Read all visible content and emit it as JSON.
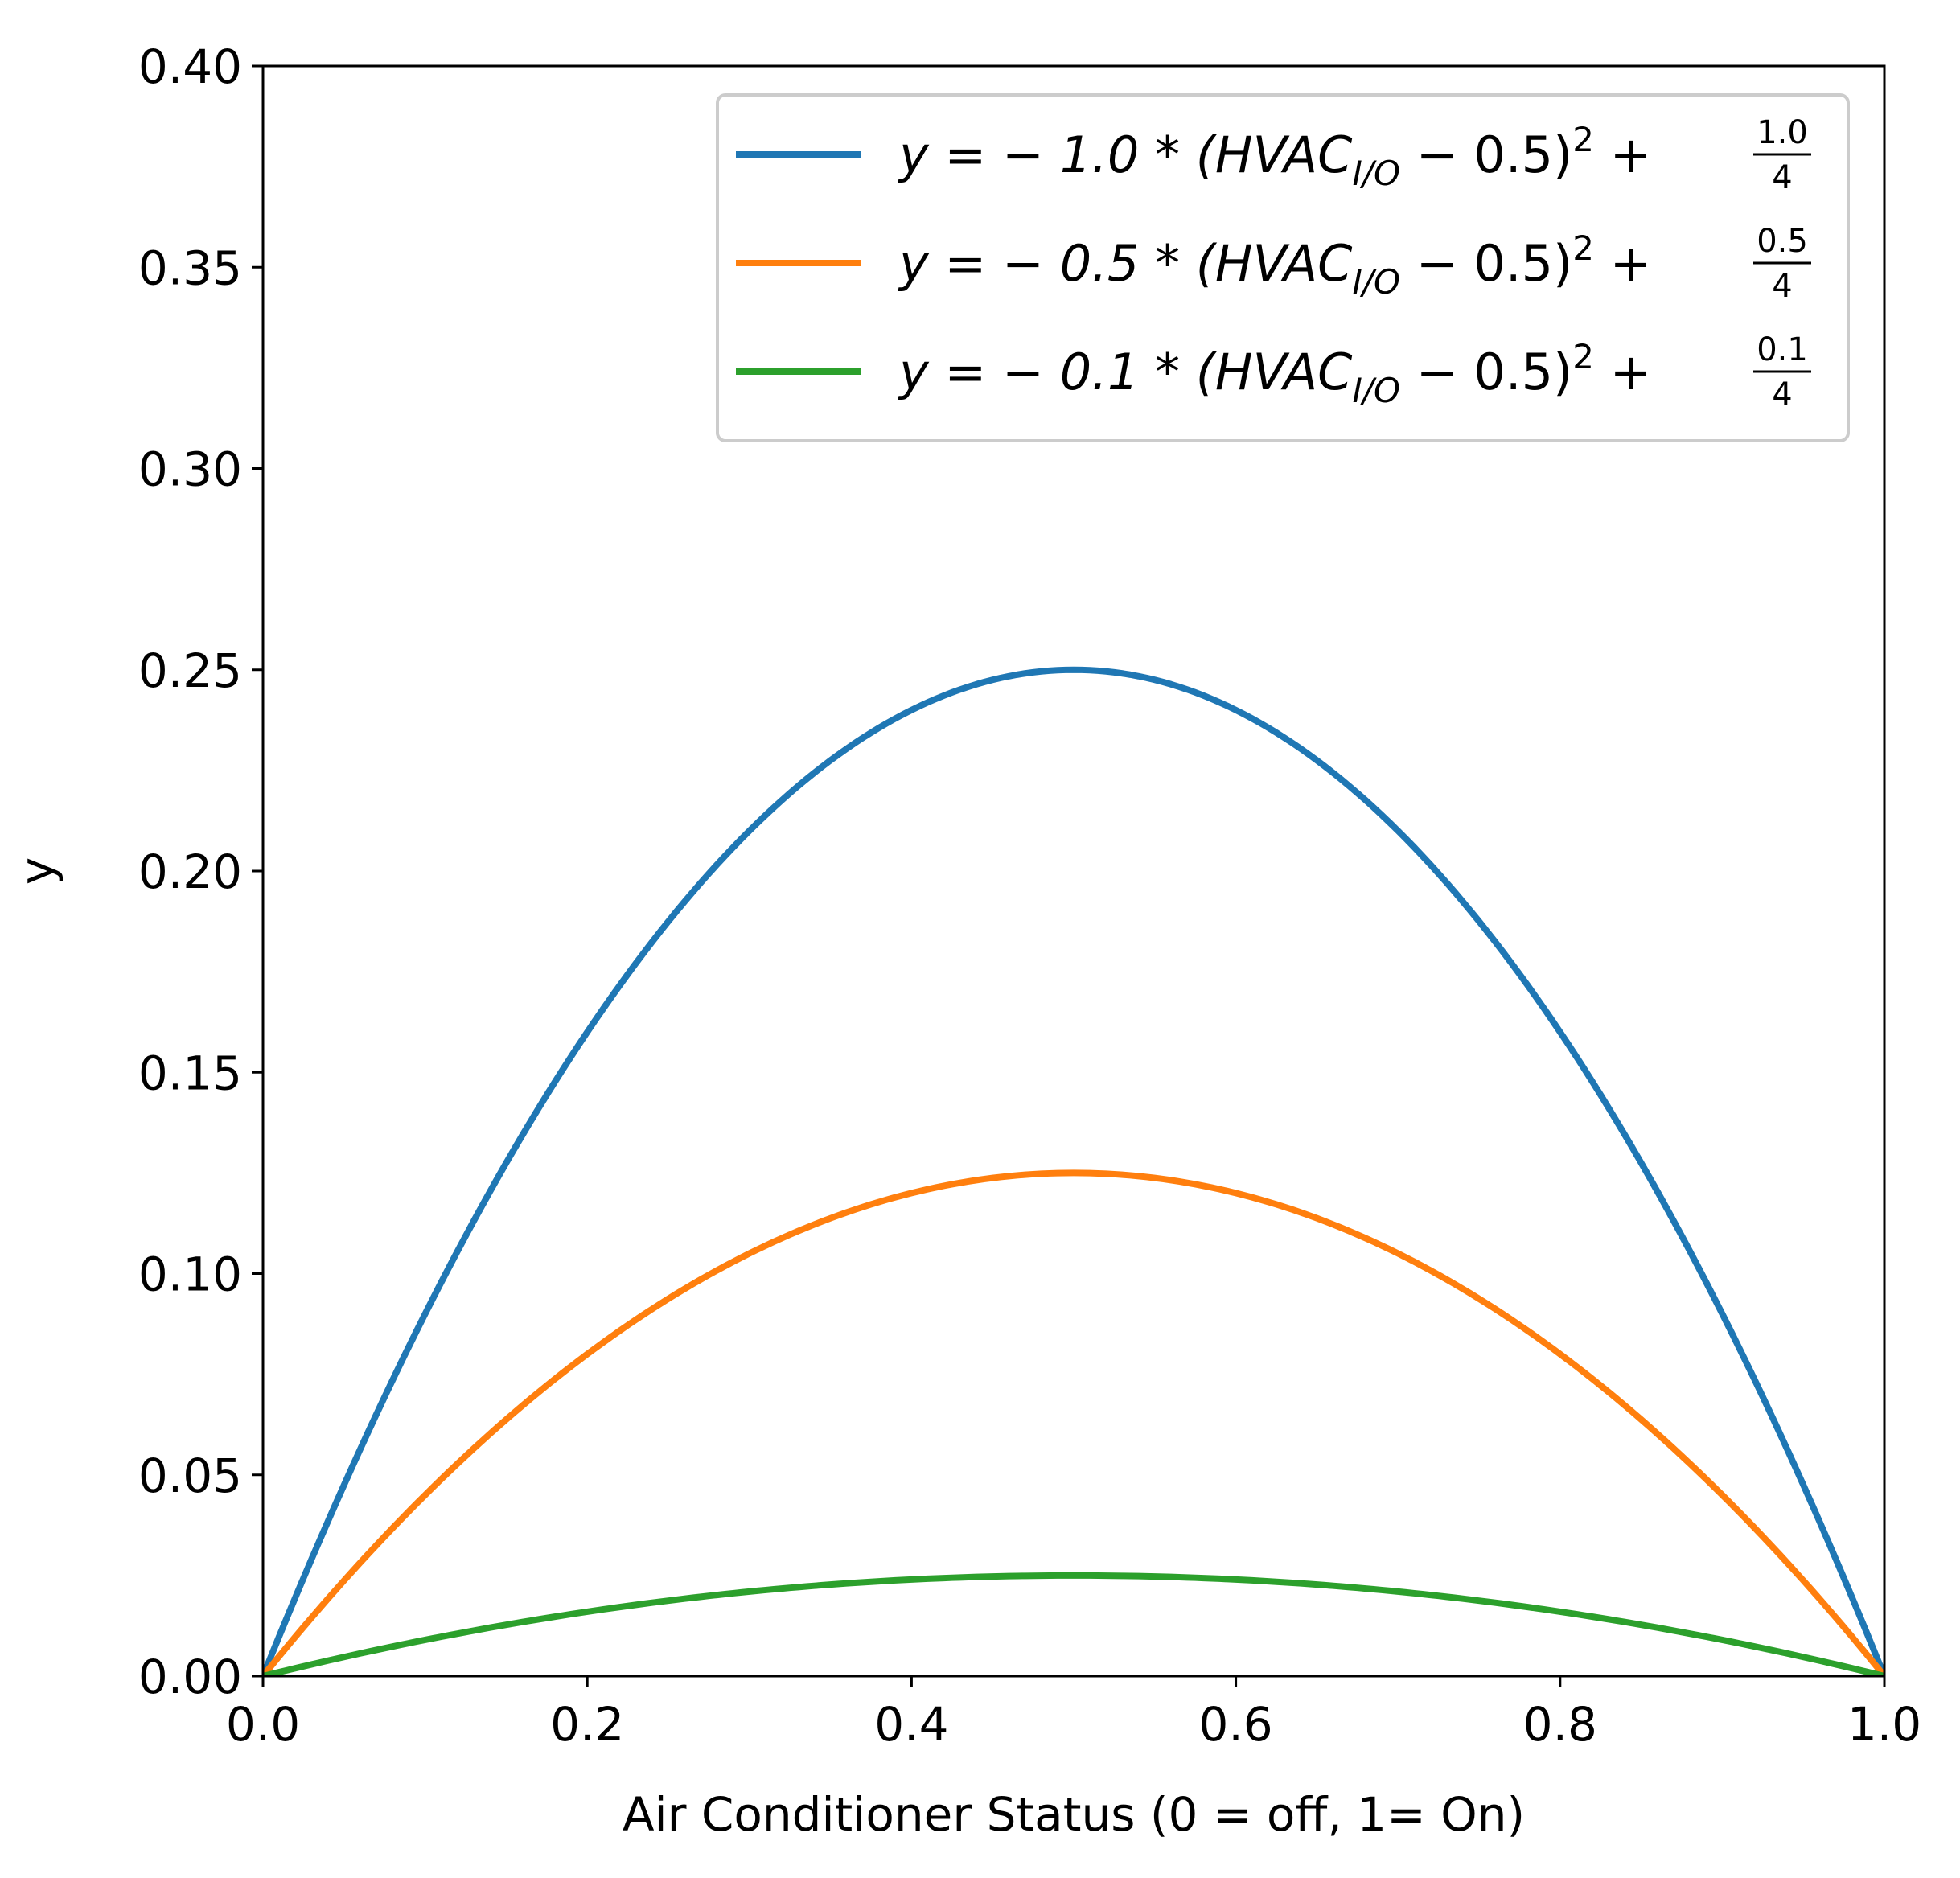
{
  "chart_data": {
    "type": "line",
    "title": "",
    "xlabel": "Air Conditioner Status (0 = off, 1= On)",
    "ylabel": "y",
    "xlim": [
      0.0,
      1.0
    ],
    "ylim": [
      0.0,
      0.4
    ],
    "grid": false,
    "legend_position": "top-right",
    "x_ticks": [
      "0.0",
      "0.2",
      "0.4",
      "0.6",
      "0.8",
      "1.0"
    ],
    "y_ticks": [
      "0.00",
      "0.05",
      "0.10",
      "0.15",
      "0.20",
      "0.25",
      "0.30",
      "0.35",
      "0.40"
    ],
    "x": [
      0.0,
      0.1,
      0.2,
      0.3,
      0.4,
      0.5,
      0.6,
      0.7,
      0.8,
      0.9,
      1.0
    ],
    "series": [
      {
        "name": "y = -1.0 * (HVAC_I/O - 0.5)^2 + 1.0/4",
        "legend_main": "y = − 1.0 * (HVAC",
        "legend_sub": "I/O",
        "legend_tail": " − 0.5)",
        "legend_sup": "2",
        "legend_plus": " +",
        "legend_num": "1.0",
        "legend_den": "4",
        "coef": 1.0,
        "color": "#1f77b4",
        "values": [
          0.0,
          0.09,
          0.16,
          0.21,
          0.24,
          0.25,
          0.24,
          0.21,
          0.16,
          0.09,
          0.0
        ]
      },
      {
        "name": "y = -0.5 * (HVAC_I/O - 0.5)^2 + 0.5/4",
        "legend_main": "y = − 0.5 * (HVAC",
        "legend_sub": "I/O",
        "legend_tail": " − 0.5)",
        "legend_sup": "2",
        "legend_plus": " +",
        "legend_num": "0.5",
        "legend_den": "4",
        "coef": 0.5,
        "color": "#ff7f0e",
        "values": [
          0.0,
          0.045,
          0.08,
          0.105,
          0.12,
          0.125,
          0.12,
          0.105,
          0.08,
          0.045,
          0.0
        ]
      },
      {
        "name": "y = -0.1 * (HVAC_I/O - 0.5)^2 + 0.1/4",
        "legend_main": "y = − 0.1 * (HVAC",
        "legend_sub": "I/O",
        "legend_tail": " − 0.5)",
        "legend_sup": "2",
        "legend_plus": " +",
        "legend_num": "0.1",
        "legend_den": "4",
        "coef": 0.1,
        "color": "#2ca02c",
        "values": [
          0.0,
          0.009,
          0.016,
          0.021,
          0.024,
          0.025,
          0.024,
          0.021,
          0.016,
          0.009,
          0.0
        ]
      }
    ]
  }
}
